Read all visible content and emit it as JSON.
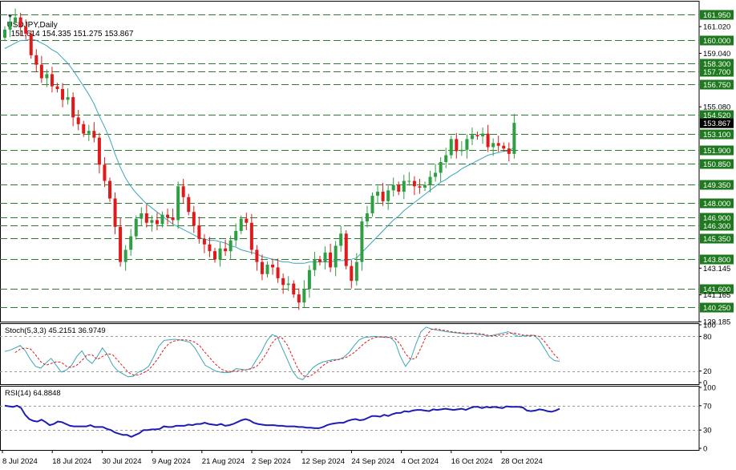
{
  "header": {
    "symbol": "USDJPY,Daily",
    "ohlc": "151.614 154.335 151.275 153.867",
    "menu_glyph": "▼"
  },
  "colors": {
    "up": "#2ea043",
    "down": "#e01a1a",
    "ma": "#3aa6b9",
    "level": "#2a7d2a",
    "level_label_bg": "#1f7a1f",
    "price_label_bg": "#000000",
    "stoch_main": "#3aa6b9",
    "stoch_signal": "#e01a1a",
    "rsi": "#1d1db3"
  },
  "chart_data": [
    {
      "type": "candlestick",
      "title": "USDJPY,Daily",
      "ohlc_readout": "151.614 154.335 151.275 153.867",
      "ylim": [
        139.185,
        162.93
      ],
      "price_ticks": [
        "161.020",
        "159.040",
        "155.080",
        "143.145",
        "141.165",
        "139.185"
      ],
      "levels": [
        "161.950",
        "160.000",
        "158.300",
        "157.700",
        "156.750",
        "154.520",
        "153.100",
        "151.900",
        "150.850",
        "149.350",
        "148.000",
        "146.900",
        "146.300",
        "145.350",
        "143.800",
        "141.600",
        "140.250"
      ],
      "current_price": "153.867",
      "x_labels": [
        "8 Jul 2024",
        "18 Jul 2024",
        "30 Jul 2024",
        "9 Aug 2024",
        "21 Aug 2024",
        "2 Sep 2024",
        "12 Sep 2024",
        "24 Sep 2024",
        "4 Oct 2024",
        "16 Oct 2024",
        "28 Oct 2024"
      ],
      "close": [
        160.8,
        161.4,
        161.7,
        161.0,
        160.5,
        158.9,
        158.2,
        157.2,
        157.5,
        156.6,
        156.4,
        155.6,
        155.8,
        154.3,
        153.8,
        153.1,
        153.3,
        152.8,
        150.8,
        149.6,
        148.3,
        146.2,
        143.6,
        144.5,
        145.5,
        146.8,
        147.2,
        146.5,
        146.7,
        146.4,
        147.1,
        146.9,
        146.7,
        149.2,
        148.4,
        147.3,
        146.3,
        145.3,
        144.9,
        144.4,
        143.8,
        144.6,
        144.4,
        145.2,
        145.9,
        146.8,
        146.5,
        144.5,
        143.6,
        142.7,
        143.4,
        143.2,
        142.4,
        141.9,
        142.0,
        141.2,
        140.6,
        141.6,
        143.0,
        143.8,
        143.6,
        144.3,
        143.2,
        144.8,
        145.7,
        143.3,
        142.2,
        143.6,
        146.6,
        147.2,
        148.5,
        148.8,
        148.1,
        148.9,
        149.3,
        148.8,
        149.6,
        149.6,
        149.2,
        149.1,
        149.3,
        149.9,
        150.2,
        151.0,
        151.5,
        152.7,
        151.8,
        151.9,
        152.7,
        153.0,
        152.9,
        153.1,
        152.1,
        152.4,
        152.2,
        152.0,
        151.6,
        153.9
      ],
      "moving_average": [
        159.4,
        159.6,
        159.8,
        160.0,
        160.0,
        160.1,
        160.0,
        159.8,
        159.6,
        159.3,
        159.1,
        158.7,
        158.3,
        157.8,
        157.2,
        156.6,
        156.0,
        155.3,
        154.4,
        153.6,
        152.7,
        151.6,
        150.6,
        149.8,
        149.2,
        148.7,
        148.3,
        147.9,
        147.6,
        147.3,
        147.0,
        146.7,
        146.4,
        146.2,
        146.0,
        145.8,
        145.6,
        145.4,
        145.3,
        145.2,
        145.2,
        145.1,
        145.0,
        144.8,
        144.7,
        144.5,
        144.4,
        144.3,
        144.2,
        144.0,
        143.9,
        143.8,
        143.7,
        143.6,
        143.6,
        143.5,
        143.5,
        143.5,
        143.6,
        143.6,
        143.6,
        143.6,
        143.6,
        143.7,
        143.7,
        143.7,
        143.8,
        143.9,
        144.3,
        144.7,
        145.1,
        145.5,
        145.9,
        146.3,
        146.7,
        147.0,
        147.4,
        147.7,
        148.0,
        148.3,
        148.6,
        148.9,
        149.2,
        149.5,
        149.7,
        150.0,
        150.2,
        150.5,
        150.7,
        150.9,
        151.1,
        151.3,
        151.5,
        151.6,
        151.7,
        151.8,
        151.8,
        152.1
      ]
    },
    {
      "type": "line",
      "title": "Stoch(5,3,3)",
      "values_readout": "45.2151 36.9749",
      "ylim": [
        0,
        100
      ],
      "y_ticks": [
        "100",
        "80",
        "20",
        "0"
      ],
      "levels": [
        80,
        20
      ],
      "series": [
        {
          "values": [
            54,
            56,
            60,
            64,
            55,
            40,
            28,
            25,
            34,
            42,
            30,
            18,
            22,
            30,
            45,
            55,
            40,
            33,
            45,
            60,
            48,
            30,
            20,
            15,
            10,
            11,
            18,
            22,
            28,
            45,
            63,
            73,
            74,
            75,
            74,
            72,
            70,
            60,
            45,
            30,
            25,
            20,
            18,
            17,
            18,
            24,
            23,
            22,
            25,
            40,
            54,
            72,
            83,
            80,
            60,
            40,
            20,
            8,
            5,
            15,
            26,
            32,
            36,
            38,
            40,
            40,
            44,
            52,
            64,
            74,
            78,
            79,
            80,
            79,
            78,
            78,
            70,
            45,
            28,
            40,
            66,
            88,
            96,
            93,
            91,
            90,
            88,
            87,
            86,
            85,
            84,
            86,
            83,
            83,
            80,
            82,
            84,
            86,
            88,
            84,
            80,
            81,
            81,
            82,
            74,
            60,
            45,
            38,
            37
          ]
        },
        {
          "values": [
            null,
            null,
            52,
            58,
            60,
            58,
            48,
            36,
            30,
            33,
            36,
            35,
            28,
            26,
            30,
            38,
            48,
            48,
            40,
            45,
            50,
            48,
            38,
            28,
            18,
            13,
            13,
            17,
            22,
            32,
            44,
            58,
            68,
            72,
            74,
            74,
            73,
            70,
            63,
            52,
            42,
            32,
            24,
            20,
            19,
            20,
            21,
            22,
            24,
            28,
            38,
            52,
            68,
            78,
            77,
            65,
            45,
            25,
            12,
            10,
            14,
            22,
            30,
            36,
            38,
            40,
            42,
            46,
            52,
            60,
            68,
            74,
            78,
            79,
            79,
            78,
            76,
            66,
            50,
            40,
            42,
            60,
            80,
            92,
            93,
            91,
            90,
            88,
            87,
            86,
            85,
            85,
            85,
            84,
            82,
            81,
            82,
            83,
            85,
            86,
            84,
            82,
            82,
            82,
            80,
            72,
            60,
            48,
            40
          ]
        }
      ]
    },
    {
      "type": "line",
      "title": "RSI(14)",
      "values_readout": "64.8848",
      "ylim": [
        0,
        100
      ],
      "y_ticks": [
        "100",
        "70",
        "30",
        "0"
      ],
      "levels": [
        70,
        30
      ],
      "series": [
        {
          "values": [
            70,
            69,
            68,
            70,
            66,
            55,
            48,
            45,
            44,
            47,
            43,
            38,
            40,
            44,
            43,
            40,
            37,
            36,
            36,
            36,
            36,
            38,
            35,
            35,
            35,
            32,
            30,
            26,
            24,
            22,
            22,
            19,
            22,
            25,
            30,
            30,
            31,
            31,
            32,
            36,
            35,
            35,
            37,
            37,
            37,
            39,
            38,
            40,
            40,
            42,
            40,
            39,
            38,
            40,
            37,
            38,
            40,
            43,
            46,
            48,
            46,
            42,
            40,
            39,
            38,
            38,
            38,
            37,
            37,
            36,
            36,
            36,
            35,
            35,
            34,
            34,
            33,
            33,
            35,
            38,
            40,
            41,
            42,
            42,
            45,
            47,
            48,
            46,
            47,
            50,
            53,
            53,
            52,
            55,
            53,
            56,
            58,
            58,
            61,
            60,
            62,
            63,
            63,
            62,
            61,
            64,
            63,
            64,
            65,
            64,
            63,
            64,
            65,
            63,
            66,
            68,
            68,
            66,
            68,
            67,
            68,
            67,
            66,
            69,
            68,
            68,
            68,
            67,
            62,
            61,
            62,
            64,
            63,
            61,
            60,
            62,
            65
          ]
        }
      ]
    }
  ]
}
